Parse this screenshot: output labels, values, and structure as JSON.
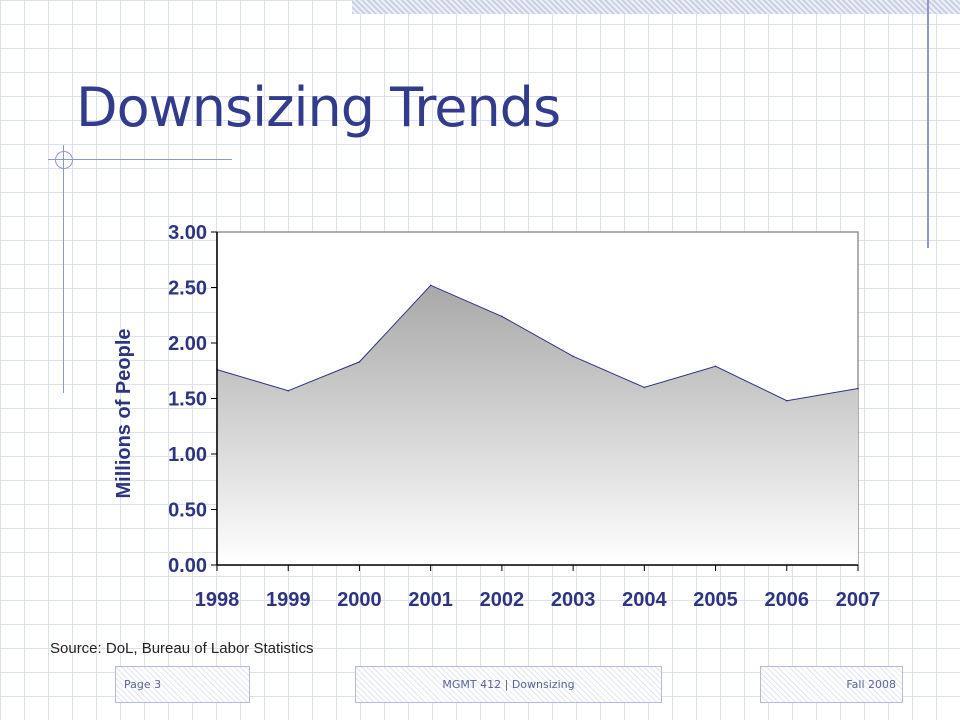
{
  "slide": {
    "title": "Downsizing Trends",
    "source": "Source: DoL, Bureau of Labor Statistics",
    "footer": {
      "page": "Page 3",
      "course": "MGMT 412 | Downsizing",
      "term": "Fall 2008"
    }
  },
  "chart_data": {
    "type": "area",
    "title": "",
    "xlabel": "",
    "ylabel": "Millions of People",
    "categories": [
      "1998",
      "1999",
      "2000",
      "2001",
      "2002",
      "2003",
      "2004",
      "2005",
      "2006",
      "2007"
    ],
    "values": [
      1.76,
      1.57,
      1.83,
      2.52,
      2.24,
      1.88,
      1.6,
      1.79,
      1.48,
      1.59
    ],
    "ylim": [
      0,
      3
    ],
    "yticks": [
      "0.00",
      "0.50",
      "1.00",
      "1.50",
      "2.00",
      "2.50",
      "3.00"
    ],
    "grid": false,
    "legend": "none",
    "colors": {
      "line": "#2e3580",
      "fill_top": "#a8a8a8",
      "fill_bottom": "#ffffff",
      "axis_text": "#2e3580"
    }
  }
}
